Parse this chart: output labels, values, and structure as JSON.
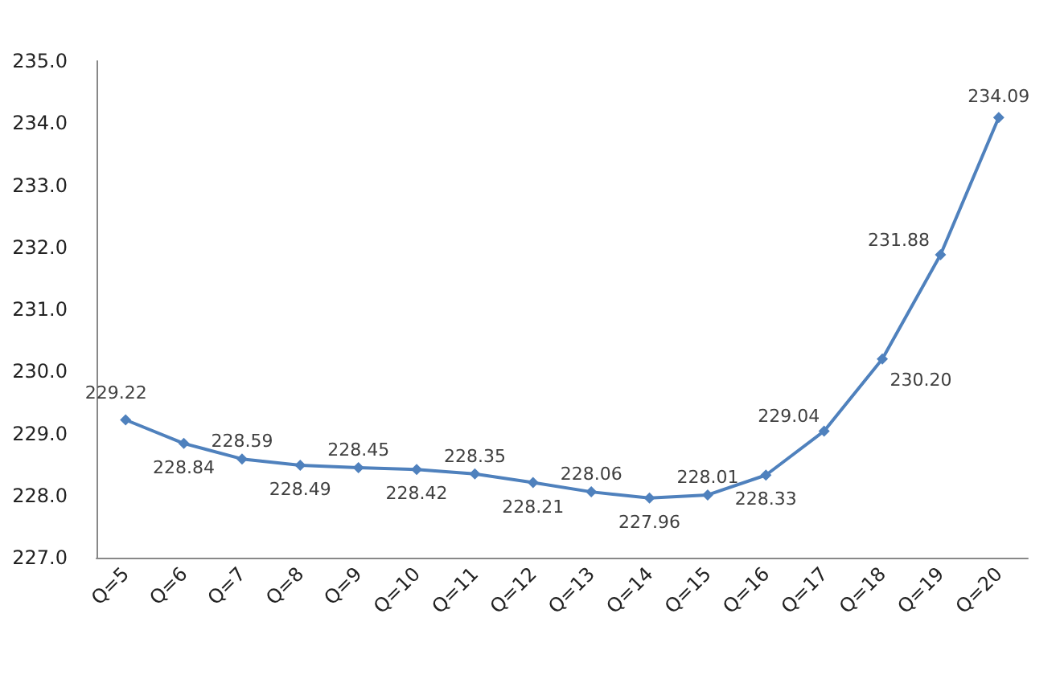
{
  "chart_data": {
    "type": "line",
    "categories": [
      "Q=5",
      "Q=6",
      "Q=7",
      "Q=8",
      "Q=9",
      "Q=10",
      "Q=11",
      "Q=12",
      "Q=13",
      "Q=14",
      "Q=15",
      "Q=16",
      "Q=17",
      "Q=18",
      "Q=19",
      "Q=20"
    ],
    "series": [
      {
        "color": "#4f81bd",
        "values": [
          229.22,
          228.84,
          228.59,
          228.49,
          228.45,
          228.42,
          228.35,
          228.21,
          228.06,
          227.96,
          228.01,
          228.33,
          229.04,
          230.2,
          231.88,
          234.09
        ],
        "value_labels": [
          "229.22",
          "228.84",
          "228.59",
          "228.49",
          "228.45",
          "228.42",
          "228.35",
          "228.21",
          "228.06",
          "227.96",
          "228.01",
          "228.33",
          "229.04",
          "230.20",
          "231.88",
          "234.09"
        ]
      }
    ],
    "ylim": [
      227,
      235
    ],
    "yticks": [
      {
        "value": 227,
        "label": "227.0"
      },
      {
        "value": 228,
        "label": "228.0"
      },
      {
        "value": 229,
        "label": "229.0"
      },
      {
        "value": 230,
        "label": "230.0"
      },
      {
        "value": 231,
        "label": "231.0"
      },
      {
        "value": 232,
        "label": "232.0"
      },
      {
        "value": 233,
        "label": "233.0"
      },
      {
        "value": 234,
        "label": "234.0"
      },
      {
        "value": 235,
        "label": "235.0"
      }
    ],
    "grid": false,
    "marker": "diamond",
    "line_style": "solid"
  }
}
